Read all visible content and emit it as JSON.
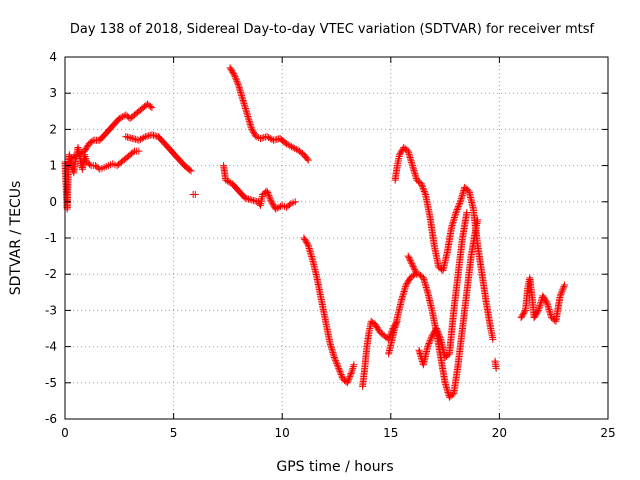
{
  "chart_data": {
    "type": "scatter",
    "title": "Day 138 of 2018, Sidereal Day-to-day VTEC variation (SDTVAR) for receiver mtsf",
    "xlabel": "GPS time / hours",
    "ylabel": "SDTVAR / TECUs",
    "xlim": [
      0,
      25
    ],
    "ylim": [
      -6,
      4
    ],
    "xticks": [
      0,
      5,
      10,
      15,
      20,
      25
    ],
    "yticks": [
      -6,
      -5,
      -4,
      -3,
      -2,
      -1,
      0,
      1,
      2,
      3,
      4
    ],
    "grid": true,
    "marker": "+",
    "color": "#ff0000",
    "series": [
      {
        "name": "SDTVAR",
        "segments": [
          [
            [
              0.0,
              1.1
            ],
            [
              0.1,
              -0.2
            ],
            [
              0.15,
              0.8
            ],
            [
              0.2,
              1.3
            ],
            [
              0.3,
              1.0
            ],
            [
              0.4,
              0.8
            ],
            [
              0.5,
              1.2
            ],
            [
              0.6,
              1.5
            ],
            [
              0.7,
              1.2
            ],
            [
              0.8,
              0.9
            ],
            [
              0.9,
              1.3
            ],
            [
              1.0,
              1.1
            ],
            [
              1.2,
              1.0
            ],
            [
              1.4,
              1.0
            ],
            [
              1.6,
              0.9
            ],
            [
              1.8,
              0.95
            ],
            [
              2.0,
              1.0
            ],
            [
              2.2,
              1.05
            ],
            [
              2.4,
              1.0
            ],
            [
              2.6,
              1.1
            ],
            [
              2.8,
              1.2
            ],
            [
              3.0,
              1.3
            ],
            [
              3.2,
              1.4
            ],
            [
              3.4,
              1.4
            ]
          ],
          [
            [
              0.3,
              1.2
            ],
            [
              0.6,
              1.3
            ],
            [
              0.9,
              1.4
            ],
            [
              1.1,
              1.6
            ],
            [
              1.3,
              1.7
            ],
            [
              1.6,
              1.7
            ],
            [
              1.9,
              1.9
            ],
            [
              2.2,
              2.1
            ],
            [
              2.5,
              2.3
            ],
            [
              2.8,
              2.4
            ],
            [
              3.0,
              2.3
            ],
            [
              3.2,
              2.4
            ],
            [
              3.4,
              2.5
            ],
            [
              3.6,
              2.6
            ],
            [
              3.8,
              2.7
            ],
            [
              4.0,
              2.6
            ]
          ],
          [
            [
              2.8,
              1.8
            ],
            [
              3.1,
              1.75
            ],
            [
              3.4,
              1.7
            ],
            [
              3.7,
              1.8
            ],
            [
              4.0,
              1.85
            ],
            [
              4.3,
              1.8
            ],
            [
              4.6,
              1.6
            ],
            [
              4.9,
              1.4
            ],
            [
              5.2,
              1.2
            ],
            [
              5.5,
              1.0
            ],
            [
              5.8,
              0.85
            ]
          ],
          [
            [
              5.9,
              0.2
            ],
            [
              6.0,
              0.2
            ]
          ],
          [
            [
              7.3,
              1.0
            ],
            [
              7.4,
              0.6
            ],
            [
              7.7,
              0.5
            ],
            [
              8.0,
              0.3
            ],
            [
              8.3,
              0.1
            ],
            [
              8.6,
              0.05
            ],
            [
              8.9,
              0.0
            ],
            [
              9.0,
              -0.1
            ],
            [
              9.1,
              0.2
            ],
            [
              9.3,
              0.3
            ],
            [
              9.5,
              0.0
            ],
            [
              9.7,
              -0.2
            ],
            [
              10.0,
              -0.1
            ],
            [
              10.2,
              -0.15
            ],
            [
              10.4,
              -0.05
            ],
            [
              10.6,
              0.0
            ]
          ],
          [
            [
              7.6,
              3.7
            ],
            [
              7.8,
              3.5
            ],
            [
              8.0,
              3.2
            ],
            [
              8.2,
              2.8
            ],
            [
              8.4,
              2.4
            ],
            [
              8.6,
              2.0
            ],
            [
              8.8,
              1.8
            ],
            [
              9.0,
              1.75
            ],
            [
              9.3,
              1.8
            ],
            [
              9.6,
              1.7
            ],
            [
              9.9,
              1.75
            ],
            [
              10.2,
              1.6
            ],
            [
              10.5,
              1.5
            ],
            [
              10.8,
              1.4
            ],
            [
              11.0,
              1.3
            ],
            [
              11.2,
              1.15
            ]
          ],
          [
            [
              11.0,
              -1.0
            ],
            [
              11.2,
              -1.2
            ],
            [
              11.4,
              -1.6
            ],
            [
              11.6,
              -2.1
            ],
            [
              11.8,
              -2.7
            ],
            [
              12.0,
              -3.3
            ],
            [
              12.2,
              -3.9
            ],
            [
              12.4,
              -4.3
            ],
            [
              12.6,
              -4.6
            ],
            [
              12.8,
              -4.9
            ],
            [
              13.0,
              -5.0
            ],
            [
              13.2,
              -4.7
            ],
            [
              13.3,
              -4.5
            ]
          ],
          [
            [
              13.7,
              -5.1
            ],
            [
              13.8,
              -4.6
            ],
            [
              13.9,
              -4.0
            ],
            [
              14.0,
              -3.6
            ],
            [
              14.1,
              -3.3
            ],
            [
              14.3,
              -3.4
            ],
            [
              14.5,
              -3.6
            ],
            [
              14.7,
              -3.7
            ],
            [
              14.9,
              -3.8
            ],
            [
              15.1,
              -3.5
            ],
            [
              15.3,
              -3.3
            ]
          ],
          [
            [
              15.2,
              0.6
            ],
            [
              15.3,
              1.0
            ],
            [
              15.4,
              1.3
            ],
            [
              15.6,
              1.5
            ],
            [
              15.8,
              1.4
            ],
            [
              16.0,
              1.0
            ],
            [
              16.2,
              0.6
            ],
            [
              16.4,
              0.5
            ],
            [
              16.6,
              0.2
            ],
            [
              16.8,
              -0.4
            ],
            [
              17.0,
              -1.2
            ],
            [
              17.2,
              -1.8
            ],
            [
              17.4,
              -1.9
            ],
            [
              17.6,
              -1.4
            ],
            [
              17.8,
              -0.7
            ],
            [
              18.0,
              -0.3
            ],
            [
              18.2,
              0.0
            ],
            [
              18.4,
              0.4
            ],
            [
              18.6,
              0.3
            ],
            [
              18.8,
              -0.2
            ],
            [
              19.0,
              -1.2
            ],
            [
              19.2,
              -2.0
            ],
            [
              19.4,
              -2.8
            ],
            [
              19.6,
              -3.5
            ],
            [
              19.7,
              -3.8
            ]
          ],
          [
            [
              14.9,
              -4.2
            ],
            [
              15.1,
              -3.7
            ],
            [
              15.3,
              -3.2
            ],
            [
              15.5,
              -2.7
            ],
            [
              15.7,
              -2.3
            ],
            [
              15.9,
              -2.1
            ],
            [
              16.1,
              -2.0
            ],
            [
              16.3,
              -2.0
            ],
            [
              16.5,
              -2.1
            ],
            [
              16.7,
              -2.5
            ],
            [
              16.9,
              -3.0
            ],
            [
              17.1,
              -3.6
            ],
            [
              17.3,
              -4.3
            ],
            [
              17.5,
              -5.0
            ],
            [
              17.7,
              -5.4
            ],
            [
              17.9,
              -5.3
            ],
            [
              18.1,
              -4.5
            ],
            [
              18.3,
              -3.5
            ],
            [
              18.5,
              -2.5
            ],
            [
              18.7,
              -1.5
            ],
            [
              18.9,
              -0.8
            ],
            [
              19.0,
              -0.5
            ]
          ],
          [
            [
              16.3,
              -4.1
            ],
            [
              16.5,
              -4.5
            ],
            [
              16.7,
              -4.0
            ],
            [
              16.9,
              -3.7
            ],
            [
              17.1,
              -3.5
            ],
            [
              17.3,
              -3.8
            ],
            [
              17.5,
              -4.3
            ],
            [
              17.7,
              -4.2
            ],
            [
              17.9,
              -3.0
            ],
            [
              18.1,
              -2.0
            ],
            [
              18.3,
              -1.0
            ],
            [
              18.5,
              -0.3
            ]
          ],
          [
            [
              15.8,
              -1.5
            ],
            [
              16.2,
              -2.0
            ]
          ],
          [
            [
              19.8,
              -4.4
            ],
            [
              19.85,
              -4.6
            ]
          ],
          [
            [
              21.0,
              -3.2
            ],
            [
              21.2,
              -3.0
            ],
            [
              21.3,
              -2.4
            ],
            [
              21.4,
              -2.1
            ],
            [
              21.5,
              -2.6
            ],
            [
              21.6,
              -3.2
            ],
            [
              21.8,
              -3.0
            ],
            [
              22.0,
              -2.6
            ],
            [
              22.2,
              -2.8
            ],
            [
              22.4,
              -3.2
            ],
            [
              22.6,
              -3.3
            ],
            [
              22.8,
              -2.6
            ],
            [
              23.0,
              -2.3
            ]
          ]
        ]
      }
    ]
  }
}
